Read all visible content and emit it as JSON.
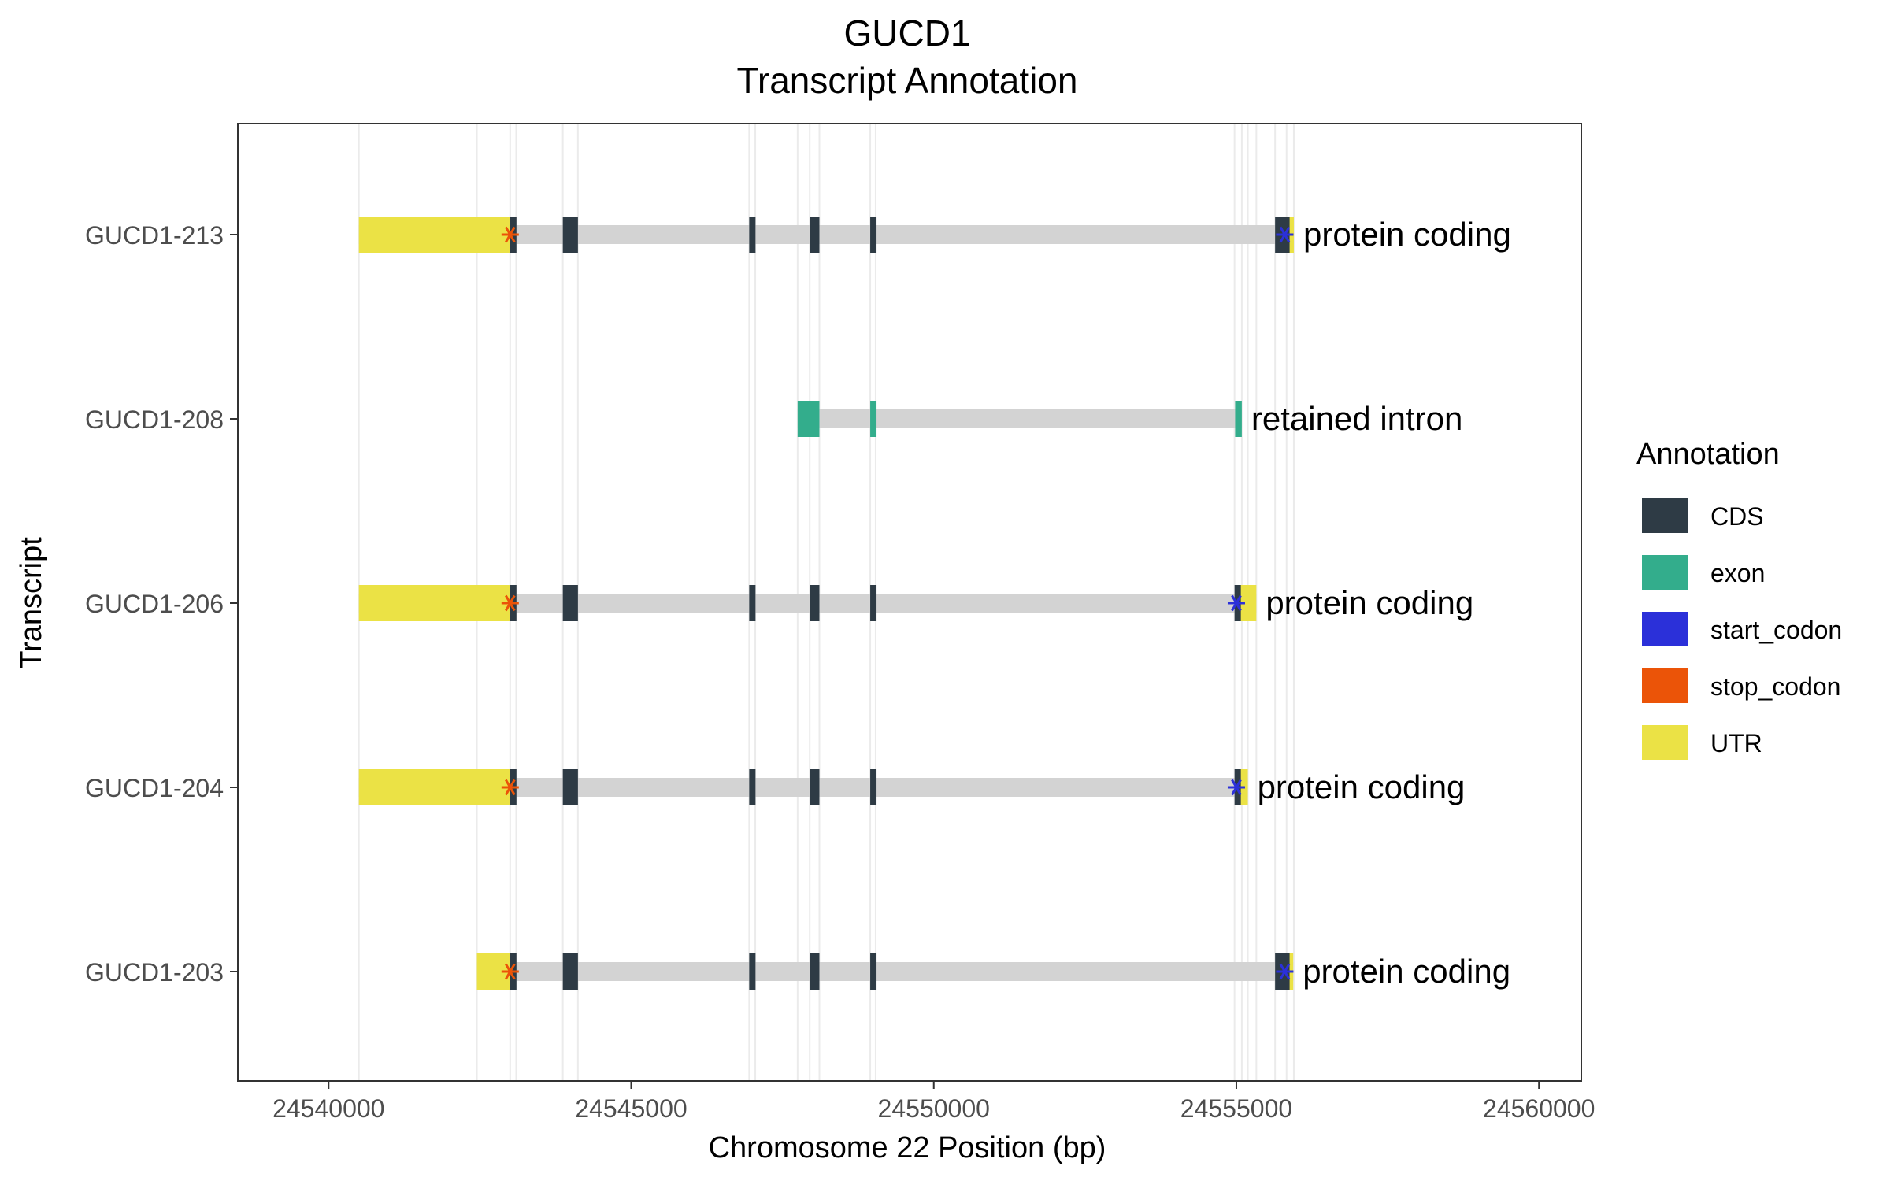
{
  "chart_data": {
    "type": "gene_track",
    "title": "GUCD1",
    "subtitle": "Transcript Annotation",
    "xlabel": "Chromosome 22 Position (bp)",
    "ylabel": "Transcript",
    "xlim": [
      24538500,
      24560700
    ],
    "x_ticks": [
      24540000,
      24545000,
      24550000,
      24555000,
      24560000
    ],
    "x_tick_labels": [
      "24540000",
      "24545000",
      "24550000",
      "24555000",
      "24560000"
    ],
    "grid": true,
    "legend": {
      "title": "Annotation",
      "placement": "right",
      "items": [
        {
          "key": "CDS",
          "label": "CDS",
          "color": "#2e3b45"
        },
        {
          "key": "exon",
          "label": "exon",
          "color": "#33ad8c"
        },
        {
          "key": "start_codon",
          "label": "start_codon",
          "color": "#2b30d9"
        },
        {
          "key": "stop_codon",
          "label": "stop_codon",
          "color": "#eb5408"
        },
        {
          "key": "UTR",
          "label": "UTR",
          "color": "#ebe245"
        }
      ]
    },
    "colors": {
      "intron": "#d3d3d3",
      "CDS": "#2e3b45",
      "exon": "#33ad8c",
      "start_codon": "#2b30d9",
      "stop_codon": "#eb5408",
      "UTR": "#ebe245"
    },
    "transcripts": [
      {
        "id": "GUCD1-213",
        "biotype": "protein coding",
        "range": [
          24540500,
          24555950
        ],
        "features": [
          {
            "type": "UTR",
            "start": 24540500,
            "end": 24543080
          },
          {
            "type": "CDS",
            "start": 24543000,
            "end": 24543100
          },
          {
            "type": "CDS",
            "start": 24543870,
            "end": 24544120
          },
          {
            "type": "CDS",
            "start": 24546950,
            "end": 24547050
          },
          {
            "type": "CDS",
            "start": 24547950,
            "end": 24548110
          },
          {
            "type": "CDS",
            "start": 24548950,
            "end": 24549040
          },
          {
            "type": "CDS",
            "start": 24555640,
            "end": 24555880
          },
          {
            "type": "UTR",
            "start": 24555830,
            "end": 24555950
          }
        ],
        "start_codon": 24555800,
        "stop_codon": 24543000
      },
      {
        "id": "GUCD1-208",
        "biotype": "retained intron",
        "range": [
          24547750,
          24555090
        ],
        "features": [
          {
            "type": "exon",
            "start": 24547750,
            "end": 24548110
          },
          {
            "type": "exon",
            "start": 24548950,
            "end": 24549040
          },
          {
            "type": "exon",
            "start": 24554980,
            "end": 24555090
          }
        ]
      },
      {
        "id": "GUCD1-206",
        "biotype": "protein coding",
        "range": [
          24540500,
          24555330
        ],
        "features": [
          {
            "type": "UTR",
            "start": 24540500,
            "end": 24543080
          },
          {
            "type": "CDS",
            "start": 24543000,
            "end": 24543100
          },
          {
            "type": "CDS",
            "start": 24543870,
            "end": 24544120
          },
          {
            "type": "CDS",
            "start": 24546950,
            "end": 24547050
          },
          {
            "type": "CDS",
            "start": 24547950,
            "end": 24548110
          },
          {
            "type": "CDS",
            "start": 24548950,
            "end": 24549040
          },
          {
            "type": "CDS",
            "start": 24554970,
            "end": 24555030
          },
          {
            "type": "UTR",
            "start": 24555000,
            "end": 24555330
          }
        ],
        "start_codon": 24555000,
        "stop_codon": 24543000
      },
      {
        "id": "GUCD1-204",
        "biotype": "protein coding",
        "range": [
          24540500,
          24555190
        ],
        "features": [
          {
            "type": "UTR",
            "start": 24540500,
            "end": 24543080
          },
          {
            "type": "CDS",
            "start": 24543000,
            "end": 24543100
          },
          {
            "type": "CDS",
            "start": 24543870,
            "end": 24544120
          },
          {
            "type": "CDS",
            "start": 24546950,
            "end": 24547050
          },
          {
            "type": "CDS",
            "start": 24547950,
            "end": 24548110
          },
          {
            "type": "CDS",
            "start": 24548950,
            "end": 24549040
          },
          {
            "type": "CDS",
            "start": 24554970,
            "end": 24555030
          },
          {
            "type": "UTR",
            "start": 24555000,
            "end": 24555190
          }
        ],
        "start_codon": 24555000,
        "stop_codon": 24543000
      },
      {
        "id": "GUCD1-203",
        "biotype": "protein coding",
        "range": [
          24542450,
          24555940
        ],
        "features": [
          {
            "type": "UTR",
            "start": 24542450,
            "end": 24543080
          },
          {
            "type": "CDS",
            "start": 24543000,
            "end": 24543100
          },
          {
            "type": "CDS",
            "start": 24543870,
            "end": 24544120
          },
          {
            "type": "CDS",
            "start": 24546950,
            "end": 24547050
          },
          {
            "type": "CDS",
            "start": 24547950,
            "end": 24548110
          },
          {
            "type": "CDS",
            "start": 24548950,
            "end": 24549040
          },
          {
            "type": "CDS",
            "start": 24555640,
            "end": 24555880
          },
          {
            "type": "UTR",
            "start": 24555830,
            "end": 24555940
          }
        ],
        "start_codon": 24555800,
        "stop_codon": 24543000
      }
    ],
    "grid_x": [
      24540500,
      24542450,
      24543000,
      24543100,
      24543870,
      24544120,
      24546950,
      24547050,
      24547750,
      24547950,
      24548110,
      24548950,
      24549040,
      24554970,
      24555090,
      24555190,
      24555330,
      24555640,
      24555830,
      24555950
    ]
  }
}
